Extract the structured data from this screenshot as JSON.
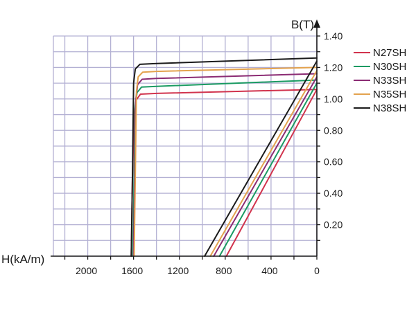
{
  "chart_data": {
    "type": "line",
    "xlabel": "H(kA/m)",
    "ylabel": "B(T)",
    "x_reversed": true,
    "xlim": [
      0,
      2300
    ],
    "ylim": [
      0,
      1.4
    ],
    "x_ticks": [
      {
        "value": 2000,
        "label": "2000"
      },
      {
        "value": 1600,
        "label": "1600"
      },
      {
        "value": 1200,
        "label": "1200"
      },
      {
        "value": 800,
        "label": "800"
      },
      {
        "value": 400,
        "label": "400"
      },
      {
        "value": 0,
        "label": "0"
      }
    ],
    "y_ticks": [
      {
        "value": 0.2,
        "label": "0.20"
      },
      {
        "value": 0.4,
        "label": "0.40"
      },
      {
        "value": 0.6,
        "label": "0.60"
      },
      {
        "value": 0.8,
        "label": "0.80"
      },
      {
        "value": 1.0,
        "label": "1.00"
      },
      {
        "value": 1.2,
        "label": "1.20"
      },
      {
        "value": 1.4,
        "label": "1.40"
      }
    ],
    "grid": true,
    "legend_position": "right",
    "series": [
      {
        "name": "N27SH",
        "color": "#d1334d",
        "intrinsic": [
          [
            1620,
            0
          ],
          [
            1610,
            0.5
          ],
          [
            1595,
            0.9
          ],
          [
            1580,
            0.99
          ],
          [
            1540,
            1.03
          ],
          [
            1400,
            1.035
          ],
          [
            0,
            1.06
          ]
        ],
        "normal": [
          [
            790,
            0
          ],
          [
            0,
            1.06
          ]
        ]
      },
      {
        "name": "N30SH",
        "color": "#1a9a62",
        "intrinsic": [
          [
            1605,
            0
          ],
          [
            1595,
            0.5
          ],
          [
            1585,
            0.95
          ],
          [
            1570,
            1.04
          ],
          [
            1530,
            1.075
          ],
          [
            1400,
            1.08
          ],
          [
            0,
            1.12
          ]
        ],
        "normal": [
          [
            850,
            0
          ],
          [
            0,
            1.1
          ]
        ]
      },
      {
        "name": "N33SH",
        "color": "#8b2b73",
        "intrinsic": [
          [
            1600,
            0
          ],
          [
            1590,
            0.5
          ],
          [
            1580,
            1.0
          ],
          [
            1565,
            1.09
          ],
          [
            1525,
            1.125
          ],
          [
            1400,
            1.13
          ],
          [
            0,
            1.16
          ]
        ],
        "normal": [
          [
            900,
            0
          ],
          [
            0,
            1.14
          ]
        ]
      },
      {
        "name": "N35SH",
        "color": "#e3a24d",
        "intrinsic": [
          [
            1595,
            0
          ],
          [
            1585,
            0.5
          ],
          [
            1575,
            1.05
          ],
          [
            1560,
            1.14
          ],
          [
            1520,
            1.17
          ],
          [
            1400,
            1.175
          ],
          [
            0,
            1.2
          ]
        ],
        "normal": [
          [
            930,
            0
          ],
          [
            0,
            1.18
          ]
        ]
      },
      {
        "name": "N38SH",
        "color": "#1a1a1a",
        "intrinsic": [
          [
            1620,
            0
          ],
          [
            1610,
            0.5
          ],
          [
            1600,
            1.1
          ],
          [
            1585,
            1.19
          ],
          [
            1545,
            1.22
          ],
          [
            1400,
            1.225
          ],
          [
            0,
            1.26
          ]
        ],
        "normal": [
          [
            980,
            0
          ],
          [
            0,
            1.24
          ]
        ]
      }
    ]
  }
}
